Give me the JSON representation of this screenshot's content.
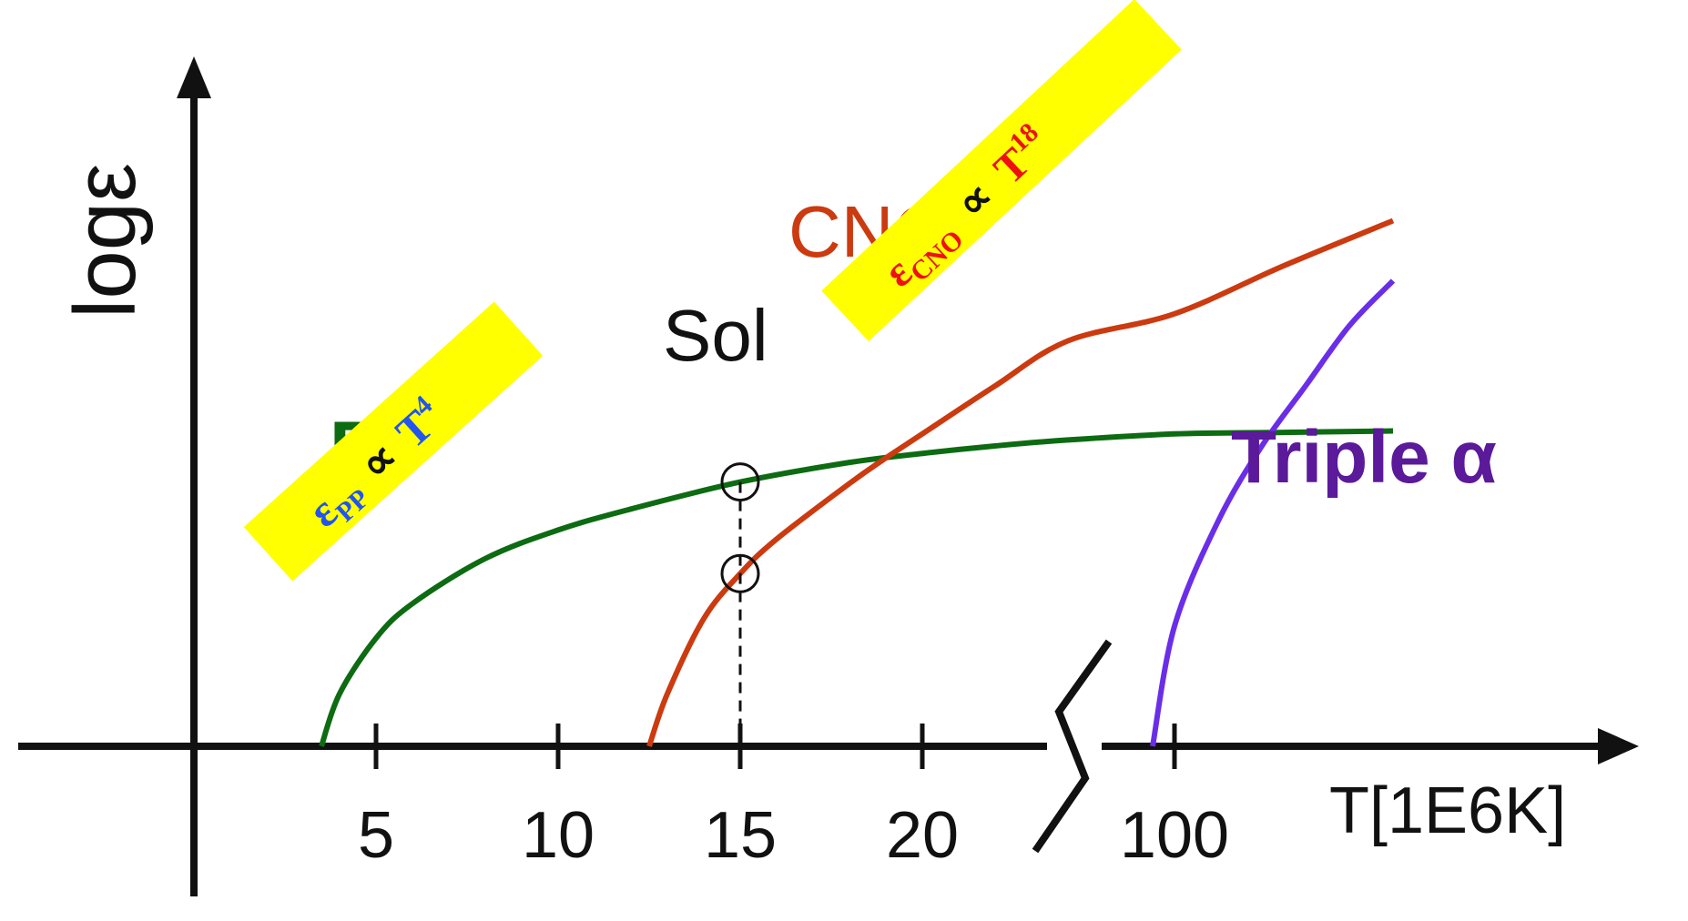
{
  "colors": {
    "pp": "#0d6b12",
    "cno": "#cc3a10",
    "triple_alpha": "#6a2ee8",
    "triple_alpha_label": "#5a1a9a",
    "axis": "#111111",
    "highlight": "#ffff00",
    "pp_formula": "#2255ee",
    "cno_formula": "#ee1111"
  },
  "chart_data": {
    "type": "line",
    "xlabel": "T[1E6K]",
    "ylabel": "logε",
    "x_ticks": [
      "5",
      "10",
      "15",
      "20",
      "100"
    ],
    "axis_break": "between 20 and 100",
    "y_ticks": [],
    "series": [
      {
        "name": "PP",
        "x": [
          3.5,
          4,
          5,
          6,
          8,
          10,
          12,
          15,
          18,
          20,
          22,
          24,
          100,
          105,
          110
        ],
        "y": [
          0,
          0.35,
          0.72,
          0.95,
          1.25,
          1.44,
          1.58,
          1.76,
          1.89,
          1.95,
          2.0,
          2.04,
          2.08,
          2.09,
          2.1
        ]
      },
      {
        "name": "CNO",
        "x": [
          12.5,
          13,
          14,
          15,
          16,
          18,
          19,
          20,
          22,
          24,
          100,
          105,
          110
        ],
        "y": [
          0,
          0.35,
          0.85,
          1.15,
          1.38,
          1.75,
          1.92,
          2.08,
          2.4,
          2.7,
          2.88,
          3.2,
          3.5
        ]
      },
      {
        "name": "Triple α",
        "x": [
          99,
          100,
          102,
          104,
          106,
          108,
          110
        ],
        "y": [
          0,
          0.8,
          1.5,
          2.0,
          2.4,
          2.8,
          3.1
        ]
      }
    ],
    "sol_marker": {
      "label": "Sol",
      "x": 15,
      "points_y": [
        1.76,
        1.15
      ]
    },
    "annotations": {
      "pp_label": "PP",
      "cno_label": "CNO",
      "triple_alpha_label": "Triple α",
      "pp_formula": {
        "base": "ε",
        "base_sub": "PP",
        "prop": "∝",
        "var": "T",
        "exp": "4"
      },
      "cno_formula": {
        "base": "ε",
        "base_sub": "CNO",
        "prop": "∝",
        "var": "T",
        "exp": "18"
      }
    }
  }
}
